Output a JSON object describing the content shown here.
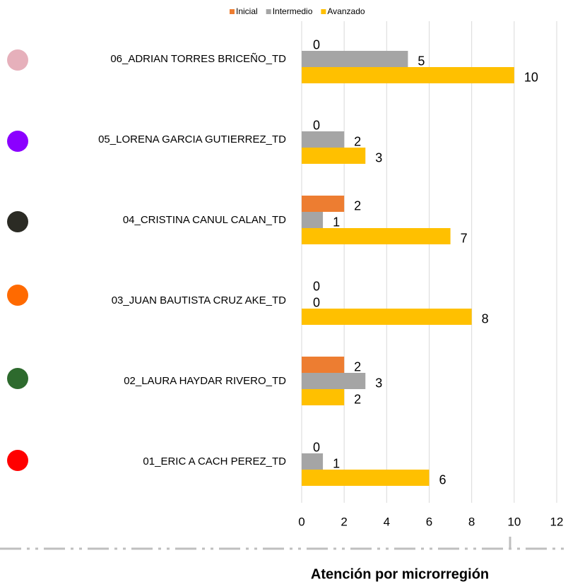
{
  "chart_data": {
    "type": "bar",
    "orientation": "horizontal",
    "title": "Atención por microrregión",
    "categories": [
      "06_ADRIAN TORRES BRICEÑO_TD",
      "05_LORENA GARCIA GUTIERREZ_TD",
      "04_CRISTINA CANUL CALAN_TD",
      "03_JUAN BAUTISTA CRUZ AKE_TD",
      "02_LAURA HAYDAR RIVERO_TD",
      "01_ERIC A CACH PEREZ_TD"
    ],
    "series": [
      {
        "name": "Inicial",
        "color": "#ed7d31",
        "values": [
          0,
          0,
          2,
          0,
          2,
          0
        ]
      },
      {
        "name": "Intermedio",
        "color": "#a5a5a5",
        "values": [
          5,
          2,
          1,
          0,
          3,
          1
        ]
      },
      {
        "name": "Avanzado",
        "color": "#ffc000",
        "values": [
          10,
          3,
          7,
          8,
          2,
          6
        ]
      }
    ],
    "xlim": [
      0,
      12
    ],
    "xticks": [
      0,
      2,
      4,
      6,
      8,
      10,
      12
    ],
    "grid": true,
    "legend": "top"
  }
}
